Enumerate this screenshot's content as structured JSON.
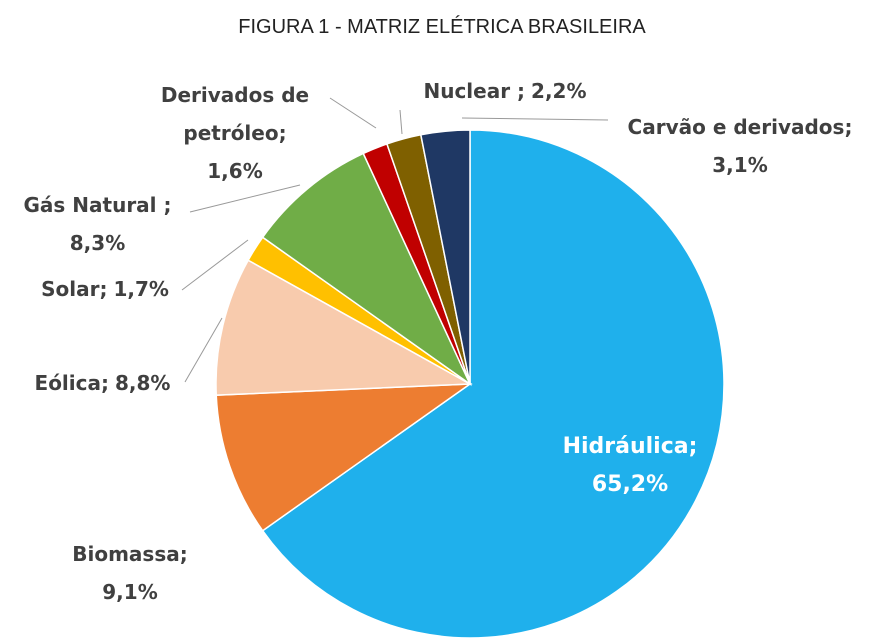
{
  "chart_data": {
    "type": "pie",
    "title": "FIGURA 1 - MATRIZ ELÉTRICA BRASILEIRA",
    "categories": [
      "Hidráulica;",
      "Biomassa;",
      "Eólica;",
      "Solar;",
      "Gás Natural ;",
      "Derivados de petróleo;",
      "Nuclear ;",
      "Carvão e derivados;"
    ],
    "values": [
      65.2,
      9.1,
      8.8,
      1.7,
      8.3,
      1.6,
      2.2,
      3.1
    ],
    "value_labels": [
      "65,2%",
      "9,1%",
      "8,8%",
      "1,7%",
      "8,3%",
      "1,6%",
      "2,2%",
      "3,1%"
    ],
    "colors": [
      "#1fb0ec",
      "#ed7d31",
      "#f8cbad",
      "#ffc000",
      "#70ad47",
      "#c00000",
      "#7f6000",
      "#1f3864"
    ]
  }
}
